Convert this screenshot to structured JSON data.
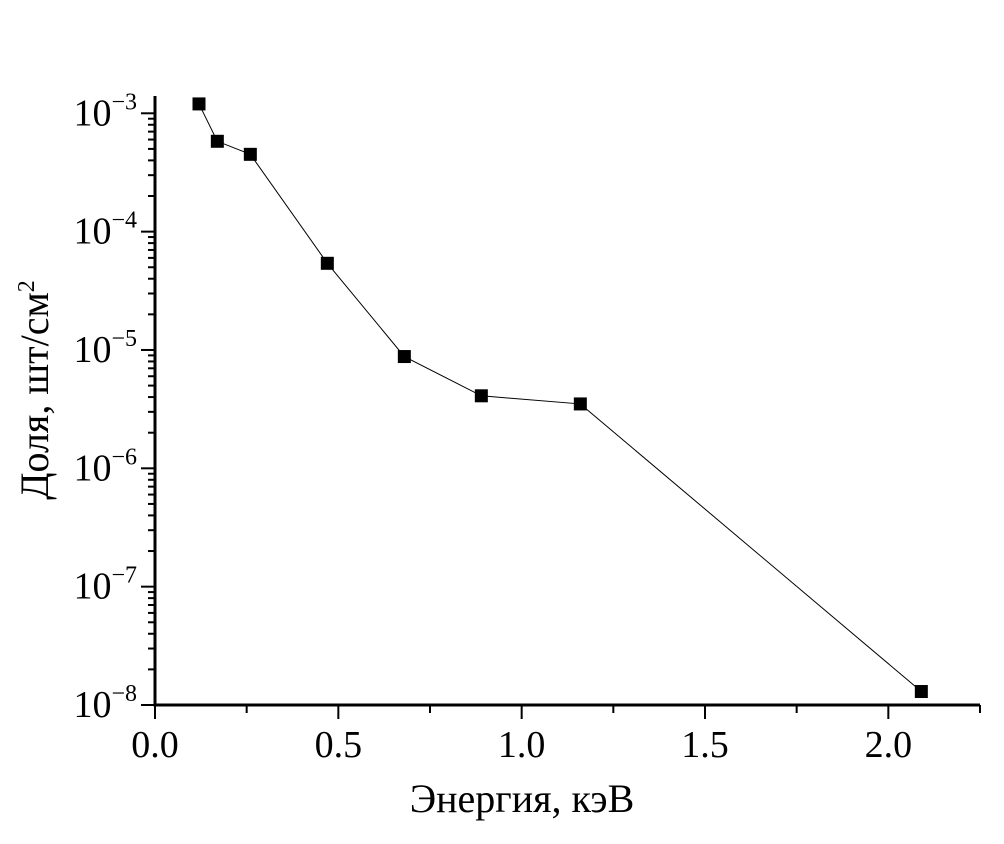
{
  "chart_data": {
    "type": "line",
    "xlabel": "Энергия, кэВ",
    "ylabel": "Доля, шт/см",
    "ylabel_sup": "2",
    "xlim": [
      0,
      2.25
    ],
    "ylim": [
      1e-08,
      0.0014
    ],
    "yscale": "log",
    "grid": false,
    "marker": "square",
    "color": "#000000",
    "x_ticks": [
      {
        "value": 0.0,
        "label": "0.0"
      },
      {
        "value": 0.5,
        "label": "0.5"
      },
      {
        "value": 1.0,
        "label": "1.0"
      },
      {
        "value": 1.5,
        "label": "1.5"
      },
      {
        "value": 2.0,
        "label": "2.0"
      }
    ],
    "y_ticks": [
      {
        "exp": -3,
        "base": "10",
        "sup": "−3"
      },
      {
        "exp": -4,
        "base": "10",
        "sup": "−4"
      },
      {
        "exp": -5,
        "base": "10",
        "sup": "−5"
      },
      {
        "exp": -6,
        "base": "10",
        "sup": "−6"
      },
      {
        "exp": -7,
        "base": "10",
        "sup": "−7"
      },
      {
        "exp": -8,
        "base": "10",
        "sup": "−8"
      }
    ],
    "series": [
      {
        "x": [
          0.12,
          0.17,
          0.26,
          0.47,
          0.68,
          0.89,
          1.16,
          2.09
        ],
        "y": [
          0.0012,
          0.00058,
          0.00045,
          5.4e-05,
          8.8e-06,
          4.1e-06,
          3.5e-06,
          1.3e-08
        ]
      }
    ]
  }
}
